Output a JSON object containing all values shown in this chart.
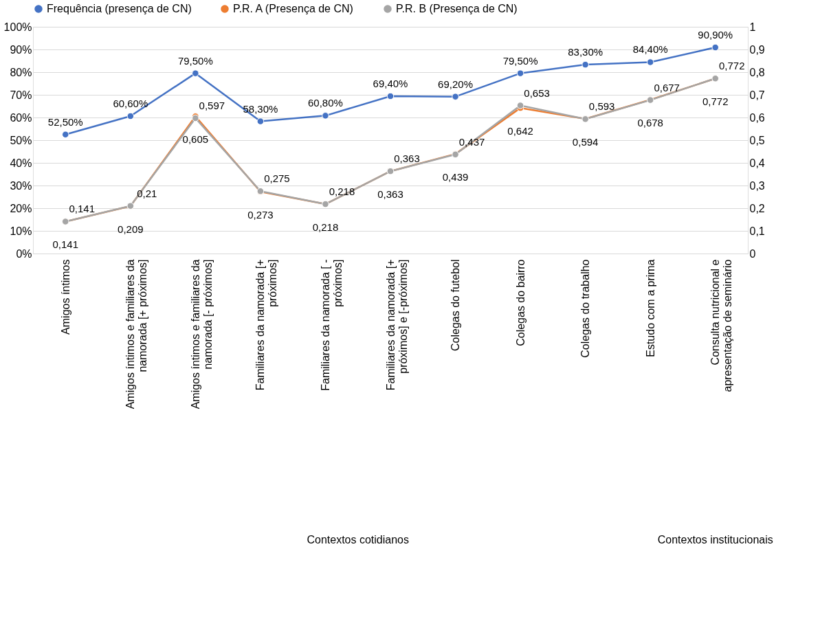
{
  "chart_data": {
    "type": "line",
    "categories": [
      "Amigos íntimos",
      "Amigos íntimos e familiares da namorada [+ próximos]",
      "Amigos íntimos e familiares da namorada [- próximos]",
      "Familiares da namorada [+ próximos]",
      "Familiares da namorada [ - próximos]",
      "Familiares da namorada [+ próximos] e [-próximos]",
      "Colegas do futebol",
      "Colegas do bairro",
      "Colegas do trabalho",
      "Estudo com a prima",
      "Consulta nutricional e apresentação de seminário"
    ],
    "series": [
      {
        "name": "Frequência (presença de CN)",
        "color": "#4472c4",
        "values": [
          52.5,
          60.6,
          79.5,
          58.3,
          60.8,
          69.4,
          69.2,
          79.5,
          83.3,
          84.4,
          90.9
        ],
        "value_labels": [
          "52,50%",
          "60,60%",
          "79,50%",
          "58,30%",
          "60,80%",
          "69,40%",
          "69,20%",
          "79,50%",
          "83,30%",
          "84,40%",
          "90,90%"
        ]
      },
      {
        "name": "P.R. A (Presença de CN)",
        "color": "#ed7d31",
        "axis": "y2",
        "values": [
          0.141,
          0.209,
          0.605,
          0.273,
          0.218,
          0.363,
          0.439,
          0.642,
          0.594,
          0.678,
          0.772
        ],
        "value_labels": [
          "0,141",
          "0,209",
          "0,605",
          "0,273",
          "0,218",
          "0,363",
          "0,439",
          "0,642",
          "0,594",
          "0,678",
          "0,772"
        ]
      },
      {
        "name": "P.R. B (Presença de CN)",
        "color": "#a5a5a5",
        "axis": "y2",
        "values": [
          0.141,
          0.21,
          0.597,
          0.275,
          0.218,
          0.363,
          0.437,
          0.653,
          0.593,
          0.677,
          0.772
        ],
        "value_labels": [
          "0,141",
          "0,21",
          "0,597",
          "0,275",
          "0,218",
          "0,363",
          "0,437",
          "0,653",
          "0,593",
          "0,677",
          "0,772"
        ]
      }
    ],
    "ylim": [
      0,
      100
    ],
    "yticks": [
      {
        "value": 0,
        "label": "0%"
      },
      {
        "value": 10,
        "label": "10%"
      },
      {
        "value": 20,
        "label": "20%"
      },
      {
        "value": 30,
        "label": "30%"
      },
      {
        "value": 40,
        "label": "40%"
      },
      {
        "value": 50,
        "label": "50%"
      },
      {
        "value": 60,
        "label": "60%"
      },
      {
        "value": 70,
        "label": "70%"
      },
      {
        "value": 80,
        "label": "80%"
      },
      {
        "value": 90,
        "label": "90%"
      },
      {
        "value": 100,
        "label": "100%"
      }
    ],
    "y2lim": [
      0,
      1
    ],
    "y2ticks": [
      {
        "value": 0,
        "label": "0"
      },
      {
        "value": 0.1,
        "label": "0,1"
      },
      {
        "value": 0.2,
        "label": "0,2"
      },
      {
        "value": 0.3,
        "label": "0,3"
      },
      {
        "value": 0.4,
        "label": "0,4"
      },
      {
        "value": 0.5,
        "label": "0,5"
      },
      {
        "value": 0.6,
        "label": "0,6"
      },
      {
        "value": 0.7,
        "label": "0,7"
      },
      {
        "value": 0.8,
        "label": "0,8"
      },
      {
        "value": 0.9,
        "label": "0,9"
      },
      {
        "value": 1,
        "label": "1"
      }
    ],
    "annotations": [
      "Contextos cotidianos",
      "Contextos institucionais"
    ],
    "grid": "y",
    "legend": "top",
    "marker": "circle",
    "line_style": "solid"
  }
}
